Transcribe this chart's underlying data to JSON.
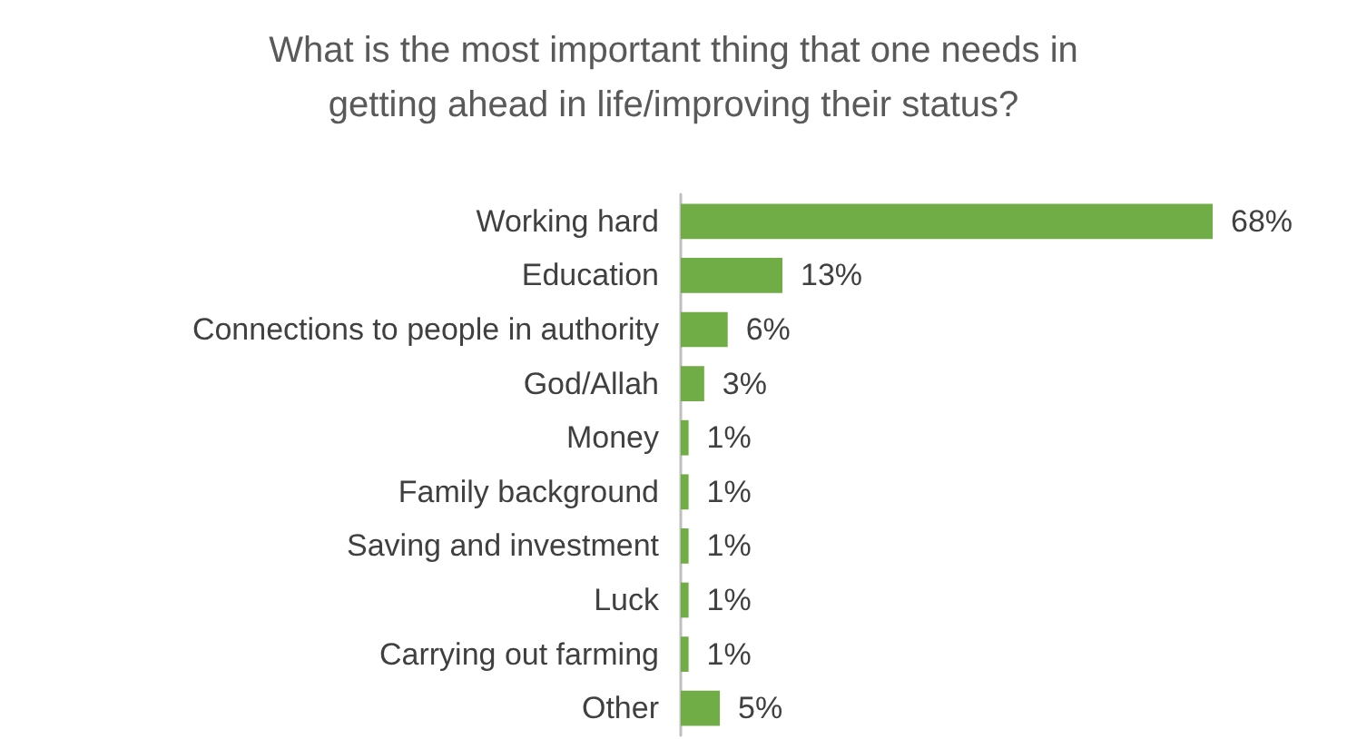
{
  "chart_data": {
    "type": "bar",
    "orientation": "horizontal",
    "title": "What is the most important thing that one needs in\ngetting ahead in life/improving their status?",
    "categories": [
      "Working hard",
      "Education",
      "Connections to people in authority",
      "God/Allah",
      "Money",
      "Family background",
      "Saving and investment",
      "Luck",
      "Carrying out farming",
      "Other"
    ],
    "values": [
      68,
      13,
      6,
      3,
      1,
      1,
      1,
      1,
      1,
      5
    ],
    "value_labels": [
      "68%",
      "13%",
      "6%",
      "3%",
      "1%",
      "1%",
      "1%",
      "1%",
      "1%",
      "5%"
    ],
    "color": "#70ad47"
  }
}
